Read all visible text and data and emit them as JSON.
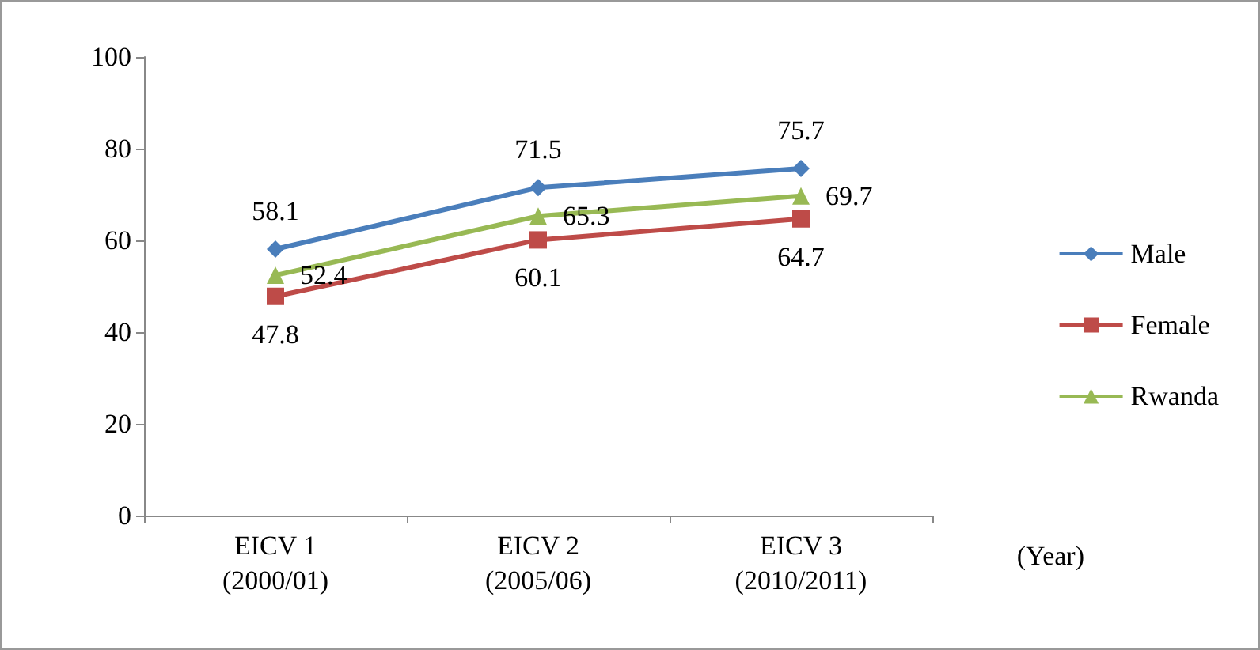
{
  "chart_data": {
    "type": "line",
    "categories": [
      "EICV 1\n(2000/01)",
      "EICV 2\n(2005/06)",
      "EICV 3\n(2010/2011)"
    ],
    "series": [
      {
        "name": "Male",
        "color": "#4a7ebb",
        "marker": "diamond",
        "values": [
          58.1,
          71.5,
          75.7
        ]
      },
      {
        "name": "Female",
        "color": "#be4b48",
        "marker": "square",
        "values": [
          47.8,
          60.1,
          64.7
        ]
      },
      {
        "name": "Rwanda",
        "color": "#98b954",
        "marker": "triangle",
        "values": [
          52.4,
          65.3,
          69.7
        ]
      }
    ],
    "ylim": [
      0,
      100
    ],
    "yticks": [
      0,
      20,
      40,
      60,
      80,
      100
    ],
    "grid": false,
    "legend": "right",
    "data_labels": true,
    "annotations": [
      "(Year)"
    ]
  }
}
